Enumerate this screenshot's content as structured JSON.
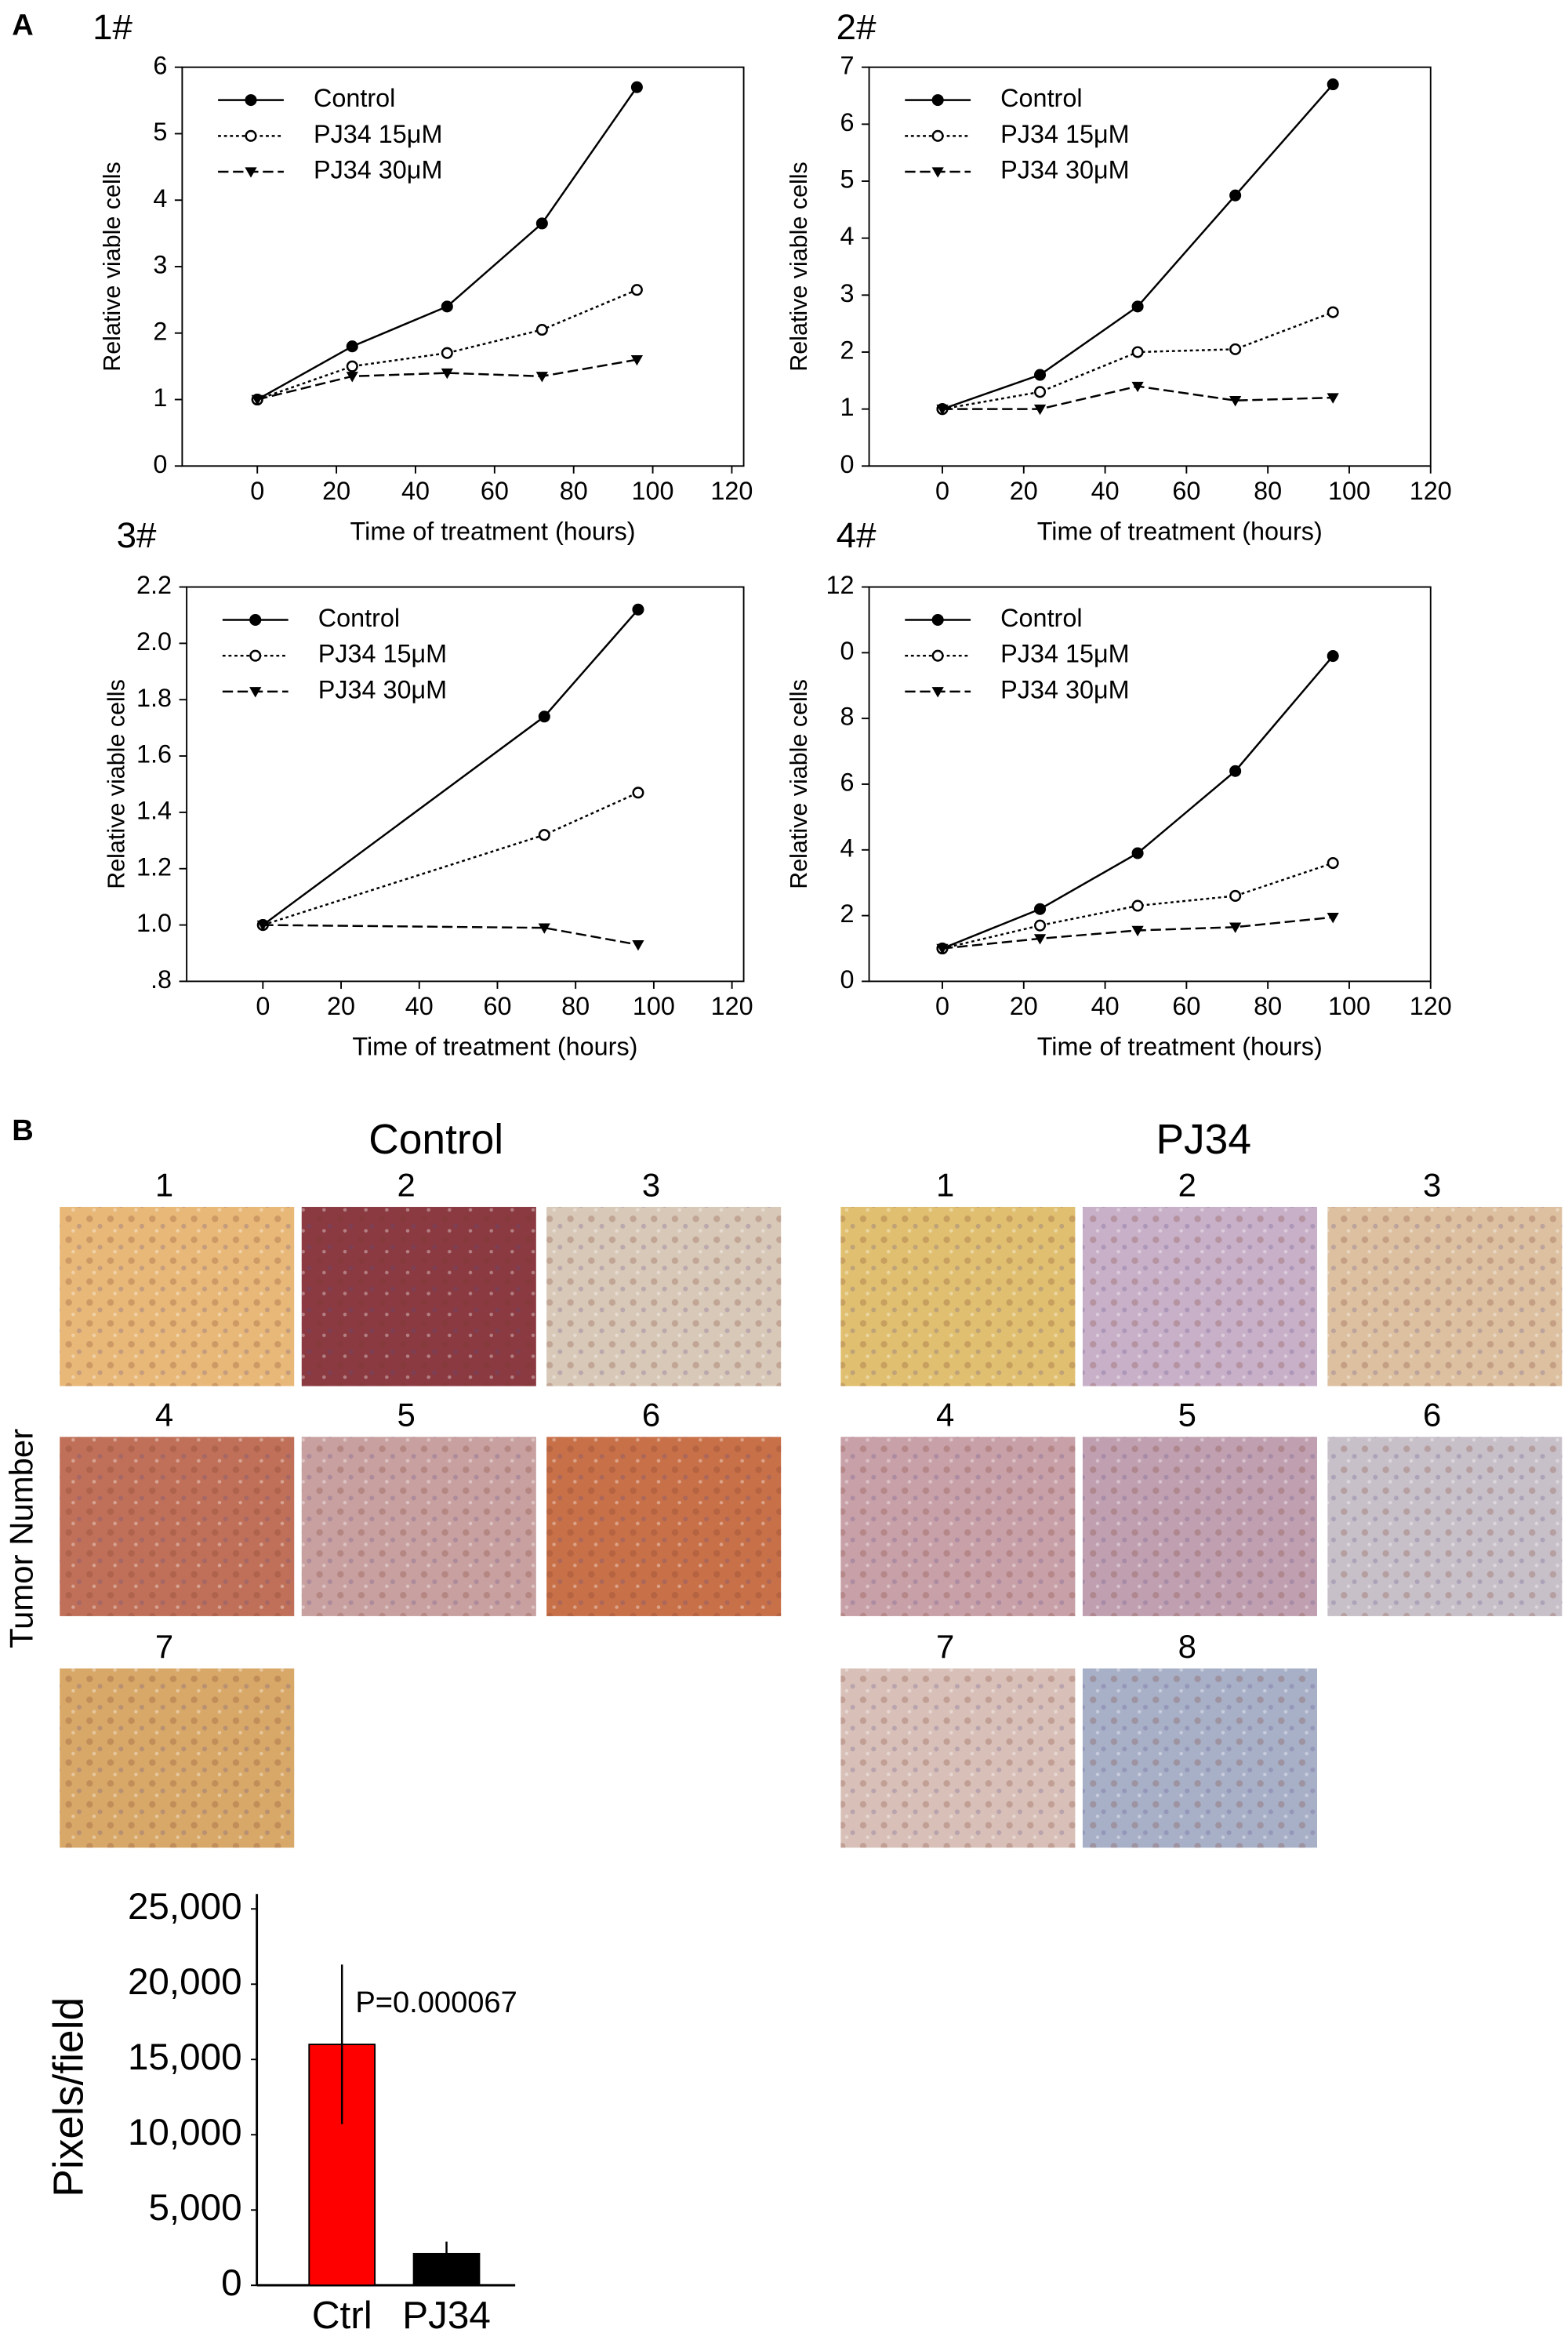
{
  "panel_labels": [
    "A",
    "B"
  ],
  "chart_data": [
    {
      "type": "line",
      "title": "1#",
      "x_label": "Time of treatment (hours)",
      "y_label": "Relative viable cells",
      "x": [
        0,
        24,
        48,
        72,
        96
      ],
      "xlim": [
        -19,
        123
      ],
      "xticks": [
        0,
        20,
        40,
        60,
        80,
        100,
        120
      ],
      "ylim": [
        0,
        6
      ],
      "yticks": [
        0,
        1,
        2,
        3,
        4,
        5,
        6
      ],
      "series": [
        {
          "name": "Control",
          "color": "#000000",
          "line_style": "solid",
          "values": [
            1,
            1.8,
            2.4,
            3.65,
            5.7
          ]
        },
        {
          "name": "PJ34 15μM",
          "color": "#000000",
          "line_style": "dotted",
          "values": [
            1,
            1.5,
            1.7,
            2.05,
            2.65
          ]
        },
        {
          "name": "PJ34 30μM",
          "color": "#000000",
          "line_style": "dashed",
          "values": [
            1,
            1.35,
            1.4,
            1.35,
            1.6
          ]
        }
      ]
    },
    {
      "type": "line",
      "title": "2#",
      "x_label": "Time of treatment (hours)",
      "y_label": "Relative viable cells",
      "x": [
        0,
        24,
        48,
        72,
        96
      ],
      "xlim": [
        -18,
        120
      ],
      "xticks": [
        0,
        20,
        40,
        60,
        80,
        100,
        120
      ],
      "ylim": [
        0,
        7
      ],
      "yticks": [
        0,
        1,
        2,
        3,
        4,
        5,
        6,
        7
      ],
      "series": [
        {
          "name": "Control",
          "color": "#000000",
          "line_style": "solid",
          "values": [
            1,
            1.6,
            2.8,
            4.75,
            6.7
          ]
        },
        {
          "name": "PJ34 15μM",
          "color": "#000000",
          "line_style": "dotted",
          "values": [
            1,
            1.3,
            2,
            2.05,
            2.7
          ]
        },
        {
          "name": "PJ34 30μM",
          "color": "#000000",
          "line_style": "dashed",
          "values": [
            1,
            1,
            1.4,
            1.15,
            1.2
          ]
        }
      ]
    },
    {
      "type": "line",
      "title": "3#",
      "x_label": "Time of treatment (hours)",
      "y_label": "Relative viable cells",
      "x": [
        0,
        72,
        96
      ],
      "xlim": [
        -19.5,
        123
      ],
      "xticks": [
        0,
        20,
        40,
        60,
        80,
        100,
        120
      ],
      "ylim": [
        0.8,
        2.2
      ],
      "yticks": [
        {
          "value": 0.8,
          "label": ".8"
        },
        {
          "value": 1,
          "label": "1.0"
        },
        1.2,
        1.4,
        1.6,
        1.8,
        {
          "value": 2,
          "label": "2.0"
        },
        2.2
      ],
      "series": [
        {
          "name": "Control",
          "color": "#000000",
          "line_style": "solid",
          "values": [
            1,
            1.74,
            2.12
          ]
        },
        {
          "name": "PJ34 15μM",
          "color": "#000000",
          "line_style": "dotted",
          "values": [
            1,
            1.32,
            1.47
          ]
        },
        {
          "name": "PJ34 30μM",
          "color": "#000000",
          "line_style": "dashed",
          "values": [
            1,
            0.99,
            0.93
          ]
        }
      ]
    },
    {
      "type": "line",
      "title": "4#",
      "x_label": "Time of treatment (hours)",
      "y_label": "Relative viable cells",
      "x": [
        0,
        24,
        48,
        72,
        96
      ],
      "xlim": [
        -18,
        120
      ],
      "xticks": [
        0,
        20,
        40,
        60,
        80,
        100,
        120
      ],
      "ylim": [
        0,
        12
      ],
      "yticks": [
        0,
        2,
        4,
        6,
        8,
        {
          "value": 10,
          "label": "0"
        },
        12
      ],
      "series": [
        {
          "name": "Control",
          "color": "#000000",
          "line_style": "solid",
          "values": [
            1,
            2.2,
            3.9,
            6.4,
            9.9
          ]
        },
        {
          "name": "PJ34 15μM",
          "color": "#000000",
          "line_style": "dotted",
          "values": [
            1,
            1.7,
            2.3,
            2.6,
            3.6
          ]
        },
        {
          "name": "PJ34 30μM",
          "color": "#000000",
          "line_style": "dashed",
          "values": [
            1,
            1.3,
            1.55,
            1.65,
            1.95
          ]
        }
      ]
    },
    {
      "type": "bar",
      "y_label": "Pixels/field",
      "annotation": "P=0.000067",
      "categories": [
        "Ctrl",
        "PJ34"
      ],
      "values": [
        16000,
        2100
      ],
      "errors": [
        5300,
        800
      ],
      "colors": [
        "#ff0000",
        "#000000"
      ],
      "ylim": [
        0,
        25000
      ],
      "yticks": [
        0,
        {
          "value": 5000,
          "label": "5,000"
        },
        {
          "value": 10000,
          "label": "10,000"
        },
        {
          "value": 15000,
          "label": "15,000"
        },
        {
          "value": 20000,
          "label": "20,000"
        },
        {
          "value": 25000,
          "label": "25,000"
        }
      ]
    }
  ],
  "panel_b": {
    "y_label": "Tumor Number",
    "groups": [
      {
        "title": "Control",
        "images": [
          "1",
          "2",
          "3",
          "4",
          "5",
          "6",
          "7"
        ]
      },
      {
        "title": "PJ34",
        "images": [
          "1",
          "2",
          "3",
          "4",
          "5",
          "6",
          "7",
          "8"
        ]
      }
    ]
  }
}
